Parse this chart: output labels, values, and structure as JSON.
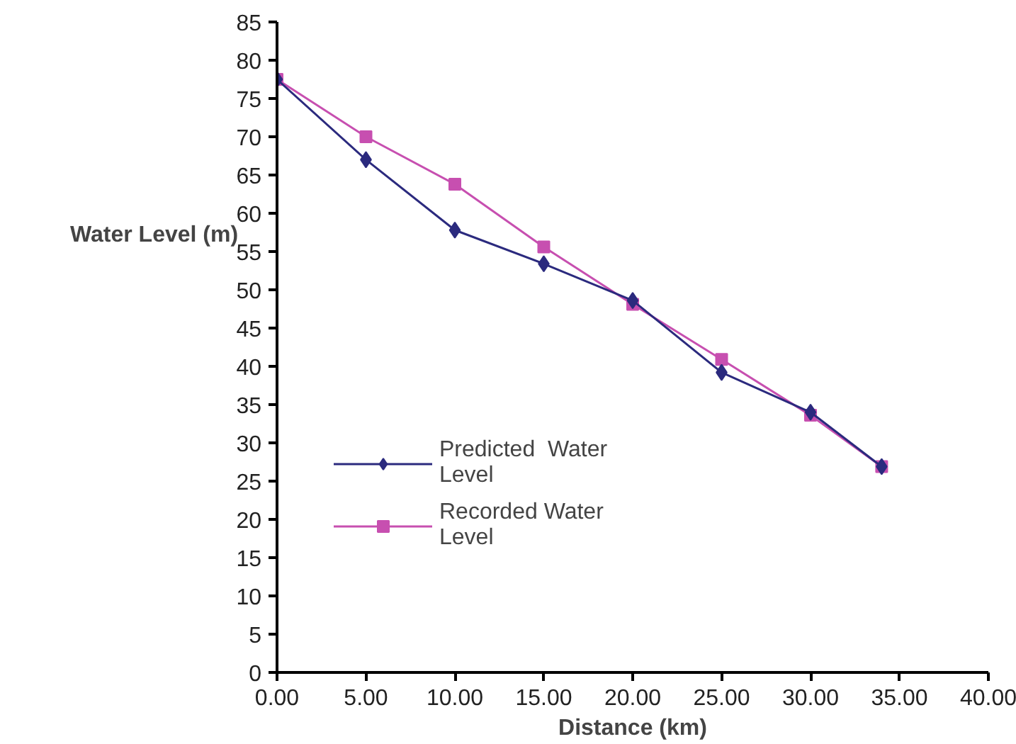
{
  "chart_data": {
    "type": "line",
    "xlabel": "Distance (km)",
    "ylabel": "Water Level (m)",
    "x": [
      0,
      5,
      10,
      15,
      20,
      25,
      30,
      34
    ],
    "series": [
      {
        "name": "Predicted  Water Level",
        "color": "#2b2a7e",
        "marker": "diamond",
        "values": [
          77.5,
          67.0,
          57.8,
          53.4,
          48.6,
          39.2,
          34.0,
          26.9
        ]
      },
      {
        "name": "Recorded Water Level",
        "color": "#c74fb0",
        "marker": "square",
        "values": [
          77.5,
          70.0,
          63.8,
          55.6,
          48.1,
          40.9,
          33.6,
          26.9
        ]
      }
    ],
    "xlim": [
      0,
      40
    ],
    "xticks": [
      {
        "value": 0,
        "label": "0.00"
      },
      {
        "value": 5,
        "label": "5.00"
      },
      {
        "value": 10,
        "label": "10.00"
      },
      {
        "value": 15,
        "label": "15.00"
      },
      {
        "value": 20,
        "label": "20.00"
      },
      {
        "value": 25,
        "label": "25.00"
      },
      {
        "value": 30,
        "label": "30.00"
      },
      {
        "value": 35,
        "label": "35.00"
      },
      {
        "value": 40,
        "label": "40.00"
      }
    ],
    "ylim": [
      0,
      85
    ],
    "yticks": [
      0,
      5,
      10,
      15,
      20,
      25,
      30,
      35,
      40,
      45,
      50,
      55,
      60,
      65,
      70,
      75,
      80,
      85
    ],
    "grid": false,
    "legend": "bottom left",
    "line_style": "solid"
  }
}
